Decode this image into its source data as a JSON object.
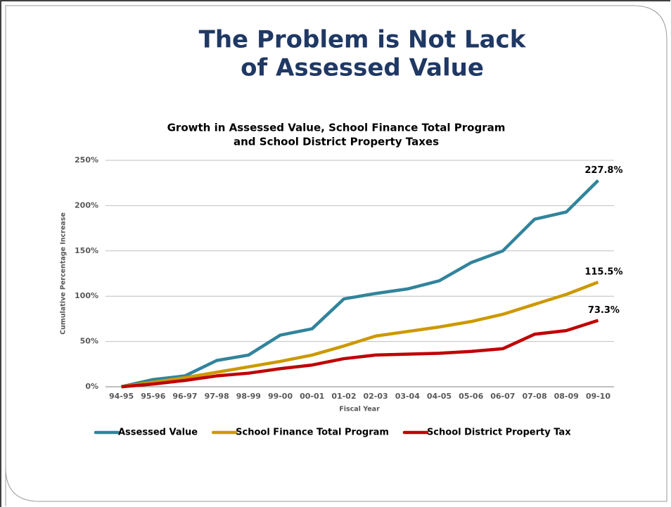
{
  "slide_title": [
    "The Problem is Not Lack",
    "of Assessed Value"
  ],
  "chart_data": {
    "type": "line",
    "title": [
      "Growth in Assessed Value, School Finance Total Program",
      "and School District Property Taxes"
    ],
    "y_label": "Cumulative Percentage Increase",
    "x_label": "Fiscal Year",
    "categories": [
      "94-95",
      "95-96",
      "96-97",
      "97-98",
      "98-99",
      "99-00",
      "00-01",
      "01-02",
      "02-03",
      "03-04",
      "04-05",
      "05-06",
      "06-07",
      "07-08",
      "08-09",
      "09-10"
    ],
    "series": [
      {
        "name": "Assessed Value",
        "color": "#31849b",
        "values": [
          0,
          8,
          12,
          29,
          35,
          57,
          64,
          97,
          103,
          108,
          117,
          137,
          150,
          185,
          193,
          227.8
        ],
        "value_labels": [
          null,
          null,
          null,
          null,
          null,
          null,
          null,
          null,
          null,
          null,
          null,
          null,
          null,
          null,
          null,
          "227.8%"
        ]
      },
      {
        "name": "School Finance Total Program",
        "color": "#cc9900",
        "values": [
          0,
          5,
          10,
          16,
          22,
          28,
          35,
          45,
          56,
          61,
          66,
          72,
          80,
          91,
          102,
          115.5
        ],
        "value_labels": [
          null,
          null,
          null,
          null,
          null,
          null,
          null,
          null,
          null,
          null,
          null,
          null,
          null,
          null,
          null,
          "115.5%"
        ]
      },
      {
        "name": "School District Property Tax",
        "color": "#c00000",
        "values": [
          0,
          3,
          7,
          12,
          15,
          20,
          24,
          31,
          35,
          36,
          37,
          39,
          42,
          58,
          62,
          73.3
        ],
        "value_labels": [
          null,
          null,
          null,
          null,
          null,
          null,
          null,
          null,
          null,
          null,
          null,
          null,
          null,
          null,
          null,
          "73.3%"
        ]
      }
    ],
    "ylim": [
      0,
      250
    ],
    "yticks": [
      {
        "value": 0,
        "label": "0%"
      },
      {
        "value": 50,
        "label": "50%"
      },
      {
        "value": 100,
        "label": "100%"
      },
      {
        "value": 150,
        "label": "150%"
      },
      {
        "value": 200,
        "label": "200%"
      },
      {
        "value": 250,
        "label": "250%"
      }
    ],
    "grid": true,
    "legend": "bottom"
  }
}
